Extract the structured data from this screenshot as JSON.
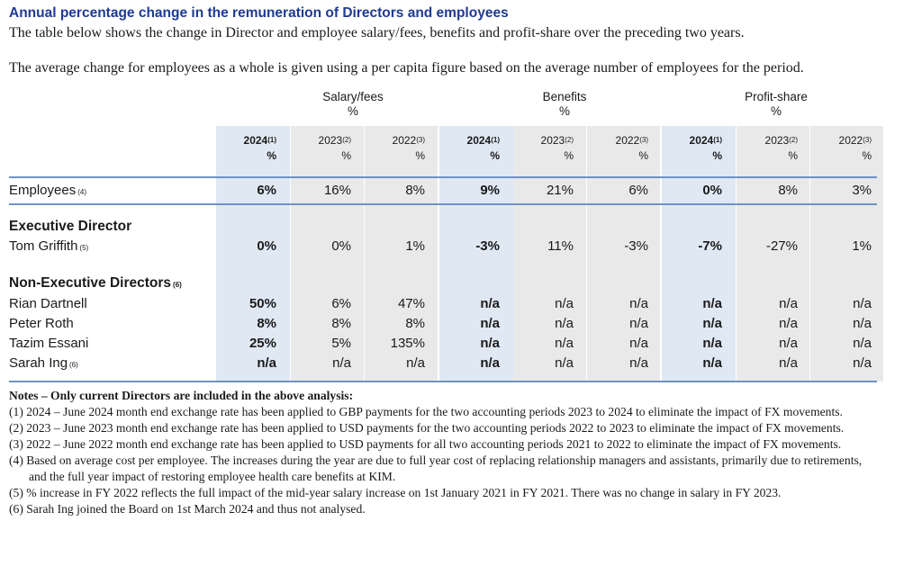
{
  "title": "Annual percentage change in the remuneration of Directors and employees",
  "intro": [
    "The table below shows the change in Director and employee salary/fees, benefits and profit-share over the preceding two years.",
    "The average change for employees as a whole is given using a per capita figure based on the average number of employees for the period."
  ],
  "table": {
    "groups": [
      {
        "label": "Salary/fees",
        "unit": "%"
      },
      {
        "label": "Benefits",
        "unit": "%"
      },
      {
        "label": "Profit-share",
        "unit": "%"
      }
    ],
    "years": [
      {
        "year": "2024",
        "note": "(1)",
        "unit": "%"
      },
      {
        "year": "2023",
        "note": "(2)",
        "unit": "%"
      },
      {
        "year": "2022",
        "note": "(3)",
        "unit": "%"
      },
      {
        "year": "2024",
        "note": "(1)",
        "unit": "%"
      },
      {
        "year": "2023",
        "note": "(2)",
        "unit": "%"
      },
      {
        "year": "2022",
        "note": "(3)",
        "unit": "%"
      },
      {
        "year": "2024",
        "note": "(1)",
        "unit": "%"
      },
      {
        "year": "2023",
        "note": "(2)",
        "unit": "%"
      },
      {
        "year": "2022",
        "note": "(3)",
        "unit": "%"
      }
    ],
    "employees": {
      "label": "Employees",
      "note": "(4)",
      "values": [
        "6%",
        "16%",
        "8%",
        "9%",
        "21%",
        "6%",
        "0%",
        "8%",
        "3%"
      ]
    },
    "exec_section": "Executive Director",
    "exec_rows": [
      {
        "label": "Tom Griffith",
        "note": "(5)",
        "values": [
          "0%",
          "0%",
          "1%",
          "-3%",
          "11%",
          "-3%",
          "-7%",
          "-27%",
          "1%"
        ]
      }
    ],
    "ned_section": {
      "label": "Non-Executive Directors",
      "note": "(6)"
    },
    "ned_rows": [
      {
        "label": "Rian Dartnell",
        "note": "",
        "values": [
          "50%",
          "6%",
          "47%",
          "n/a",
          "n/a",
          "n/a",
          "n/a",
          "n/a",
          "n/a"
        ]
      },
      {
        "label": "Peter Roth",
        "note": "",
        "values": [
          "8%",
          "8%",
          "8%",
          "n/a",
          "n/a",
          "n/a",
          "n/a",
          "n/a",
          "n/a"
        ]
      },
      {
        "label": "Tazim Essani",
        "note": "",
        "values": [
          "25%",
          "5%",
          "135%",
          "n/a",
          "n/a",
          "n/a",
          "n/a",
          "n/a",
          "n/a"
        ]
      },
      {
        "label": "Sarah Ing",
        "note": "(6)",
        "values": [
          "n/a",
          "n/a",
          "n/a",
          "n/a",
          "n/a",
          "n/a",
          "n/a",
          "n/a",
          "n/a"
        ]
      }
    ]
  },
  "notes": {
    "heading": "Notes – Only current Directors are included in the above analysis:",
    "items": [
      "(1) 2024 – June 2024 month end exchange rate has been applied to GBP payments for the two accounting periods 2023 to 2024 to eliminate the impact of FX movements.",
      "(2) 2023 – June 2023 month end exchange rate has been applied to USD payments for the two accounting periods 2022 to 2023 to eliminate the impact of FX movements.",
      "(3) 2022 – June 2022 month end exchange rate has been applied to USD payments for all two accounting periods 2021 to 2022 to eliminate the impact of FX movements.",
      "(4) Based on average cost per employee. The increases during the year are due to full year cost of replacing relationship managers and assistants, primarily due to retirements, and the full year impact of restoring employee health care benefits at KIM.",
      "(5) % increase in FY 2022 reflects the full impact of the mid-year salary increase on 1st January 2021 in FY 2021. There was no change in salary in FY 2023.",
      "(6) Sarah Ing joined the Board on 1st March 2024 and thus not analysed."
    ]
  }
}
